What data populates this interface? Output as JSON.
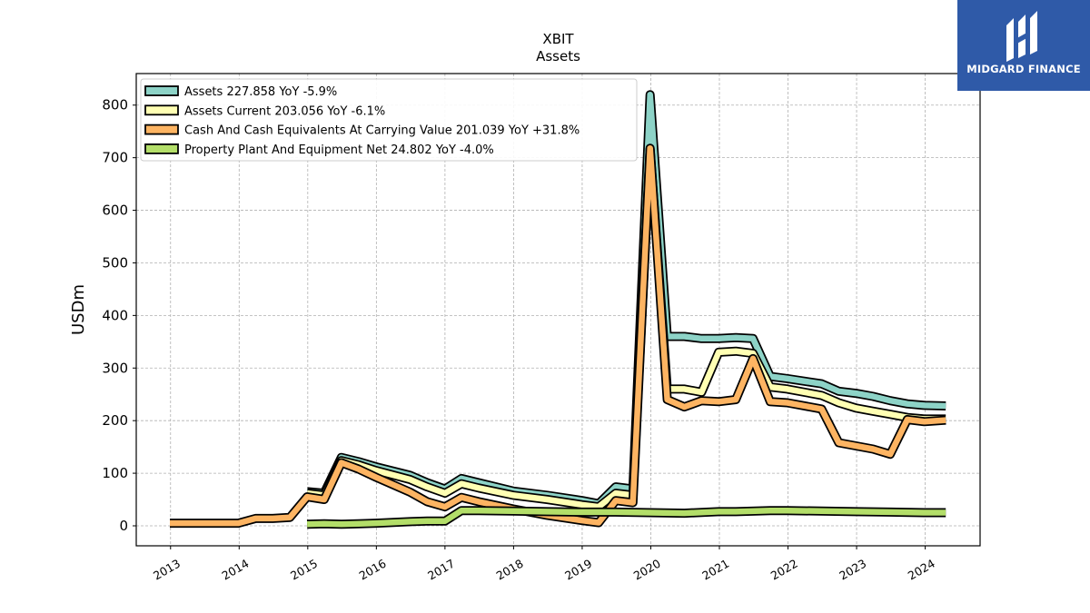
{
  "brand": {
    "name": "MIDGARD FINANCE",
    "color": "#2f5aa8"
  },
  "chart_data": {
    "type": "line",
    "title": "XBIT",
    "subtitle": "Assets",
    "xlabel": "",
    "ylabel": "USDm",
    "xlim": [
      2012.5,
      2024.8
    ],
    "ylim": [
      -38,
      860
    ],
    "x_ticks": [
      "2013",
      "2014",
      "2015",
      "2016",
      "2017",
      "2018",
      "2019",
      "2020",
      "2021",
      "2022",
      "2023",
      "2024"
    ],
    "y_ticks": [
      0,
      100,
      200,
      300,
      400,
      500,
      600,
      700,
      800
    ],
    "grid": true,
    "legend_position": "top-left",
    "series": [
      {
        "name": "Assets  227.858 YoY -5.9%",
        "color": "#8dd3c7",
        "points": [
          [
            2014.99,
            65
          ],
          [
            2015.24,
            62
          ],
          [
            2015.49,
            130
          ],
          [
            2015.74,
            122
          ],
          [
            2016.0,
            112
          ],
          [
            2016.49,
            96
          ],
          [
            2016.74,
            82
          ],
          [
            2017.0,
            70
          ],
          [
            2017.24,
            90
          ],
          [
            2017.49,
            82
          ],
          [
            2018.0,
            66
          ],
          [
            2018.49,
            58
          ],
          [
            2019.0,
            48
          ],
          [
            2019.24,
            42
          ],
          [
            2019.49,
            74
          ],
          [
            2019.74,
            70
          ],
          [
            2019.99,
            820
          ],
          [
            2020.24,
            360
          ],
          [
            2020.49,
            360
          ],
          [
            2020.74,
            356
          ],
          [
            2020.99,
            356
          ],
          [
            2021.24,
            358
          ],
          [
            2021.49,
            356
          ],
          [
            2021.74,
            284
          ],
          [
            2021.99,
            280
          ],
          [
            2022.49,
            270
          ],
          [
            2022.74,
            256
          ],
          [
            2022.99,
            252
          ],
          [
            2023.24,
            246
          ],
          [
            2023.49,
            238
          ],
          [
            2023.74,
            232
          ],
          [
            2023.99,
            229
          ],
          [
            2024.3,
            228
          ]
        ]
      },
      {
        "name": "Assets Current  203.056 YoY -6.1%",
        "color": "#ffffb3",
        "points": [
          [
            2014.99,
            62
          ],
          [
            2015.24,
            58
          ],
          [
            2015.49,
            124
          ],
          [
            2015.74,
            116
          ],
          [
            2016.0,
            105
          ],
          [
            2016.49,
            88
          ],
          [
            2016.74,
            74
          ],
          [
            2017.0,
            62
          ],
          [
            2017.24,
            80
          ],
          [
            2017.49,
            72
          ],
          [
            2018.0,
            58
          ],
          [
            2018.49,
            50
          ],
          [
            2019.0,
            40
          ],
          [
            2019.24,
            36
          ],
          [
            2019.49,
            62
          ],
          [
            2019.74,
            58
          ],
          [
            2019.99,
            716
          ],
          [
            2020.24,
            260
          ],
          [
            2020.49,
            260
          ],
          [
            2020.74,
            254
          ],
          [
            2020.99,
            330
          ],
          [
            2021.24,
            332
          ],
          [
            2021.49,
            328
          ],
          [
            2021.74,
            264
          ],
          [
            2021.99,
            260
          ],
          [
            2022.49,
            248
          ],
          [
            2022.74,
            234
          ],
          [
            2022.99,
            224
          ],
          [
            2023.24,
            218
          ],
          [
            2023.49,
            212
          ],
          [
            2023.74,
            206
          ],
          [
            2023.99,
            203
          ],
          [
            2024.3,
            203
          ]
        ]
      },
      {
        "name": "Cash And Cash Equivalents At Carrying Value  201.039 YoY +31.8%",
        "color": "#fdb462",
        "points": [
          [
            2012.99,
            5
          ],
          [
            2013.99,
            5
          ],
          [
            2014.24,
            14
          ],
          [
            2014.49,
            14
          ],
          [
            2014.74,
            16
          ],
          [
            2014.99,
            55
          ],
          [
            2015.24,
            50
          ],
          [
            2015.49,
            120
          ],
          [
            2015.74,
            108
          ],
          [
            2016.0,
            92
          ],
          [
            2016.49,
            64
          ],
          [
            2016.74,
            46
          ],
          [
            2017.0,
            36
          ],
          [
            2017.24,
            54
          ],
          [
            2017.49,
            46
          ],
          [
            2018.0,
            32
          ],
          [
            2018.49,
            20
          ],
          [
            2019.0,
            10
          ],
          [
            2019.24,
            6
          ],
          [
            2019.49,
            48
          ],
          [
            2019.74,
            44
          ],
          [
            2019.99,
            718
          ],
          [
            2020.24,
            240
          ],
          [
            2020.49,
            226
          ],
          [
            2020.74,
            238
          ],
          [
            2020.99,
            236
          ],
          [
            2021.24,
            240
          ],
          [
            2021.49,
            318
          ],
          [
            2021.74,
            236
          ],
          [
            2021.99,
            234
          ],
          [
            2022.49,
            222
          ],
          [
            2022.74,
            158
          ],
          [
            2022.99,
            152
          ],
          [
            2023.24,
            146
          ],
          [
            2023.49,
            136
          ],
          [
            2023.74,
            202
          ],
          [
            2023.99,
            198
          ],
          [
            2024.3,
            201
          ]
        ]
      },
      {
        "name": "Property Plant And Equipment Net  24.802 YoY -4.0%",
        "color": "#b3de69",
        "points": [
          [
            2014.99,
            3
          ],
          [
            2015.24,
            4
          ],
          [
            2015.49,
            3
          ],
          [
            2015.74,
            4
          ],
          [
            2016.0,
            5
          ],
          [
            2016.49,
            8
          ],
          [
            2016.74,
            9
          ],
          [
            2017.0,
            9
          ],
          [
            2017.24,
            29
          ],
          [
            2017.49,
            29
          ],
          [
            2018.0,
            28
          ],
          [
            2018.49,
            27
          ],
          [
            2019.0,
            26
          ],
          [
            2019.49,
            26
          ],
          [
            2019.99,
            25
          ],
          [
            2020.49,
            24
          ],
          [
            2020.99,
            27
          ],
          [
            2021.24,
            27
          ],
          [
            2021.74,
            29
          ],
          [
            2021.99,
            29
          ],
          [
            2022.49,
            28
          ],
          [
            2022.99,
            27
          ],
          [
            2023.49,
            26
          ],
          [
            2023.99,
            25
          ],
          [
            2024.3,
            25
          ]
        ]
      }
    ]
  }
}
